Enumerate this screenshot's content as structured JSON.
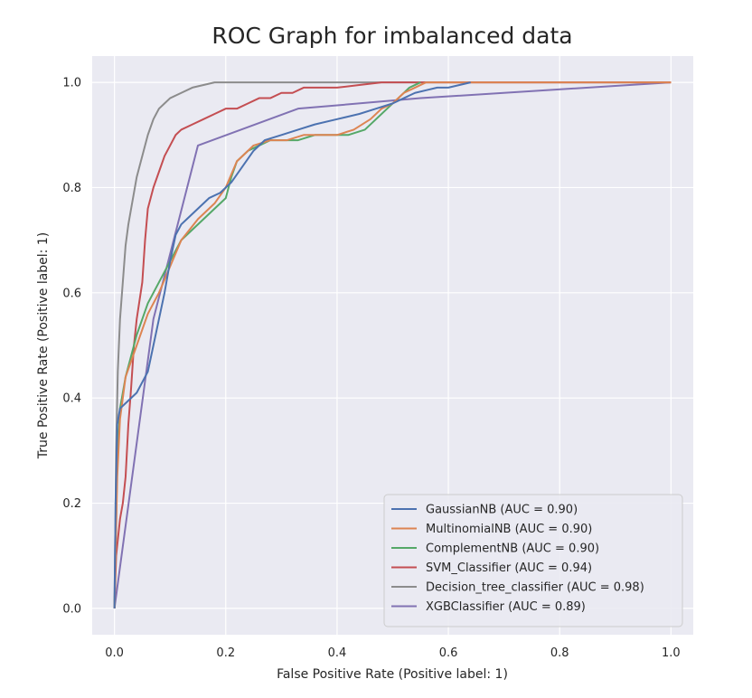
{
  "chart_data": {
    "type": "line",
    "title": "ROC Graph for imbalanced data",
    "xlabel": "False Positive Rate (Positive label: 1)",
    "ylabel": "True Positive Rate (Positive label: 1)",
    "xlim": [
      -0.04,
      1.04
    ],
    "ylim": [
      -0.05,
      1.05
    ],
    "xticks": [
      "0.0",
      "0.2",
      "0.4",
      "0.6",
      "0.8",
      "1.0"
    ],
    "yticks": [
      "0.0",
      "0.2",
      "0.4",
      "0.6",
      "0.8",
      "1.0"
    ],
    "grid": true,
    "background": "#eaeaf2",
    "legend_position": "lower-right",
    "series": [
      {
        "name": "GaussianNB (AUC = 0.90)",
        "color": "#4c72b0",
        "x": [
          0,
          0.002,
          0.005,
          0.01,
          0.02,
          0.04,
          0.06,
          0.07,
          0.08,
          0.09,
          0.1,
          0.11,
          0.12,
          0.13,
          0.15,
          0.17,
          0.19,
          0.21,
          0.23,
          0.25,
          0.27,
          0.3,
          0.33,
          0.36,
          0.4,
          0.44,
          0.47,
          0.5,
          0.52,
          0.53,
          0.54,
          0.56,
          0.58,
          0.6,
          0.62,
          0.64
        ],
        "y": [
          0,
          0.2,
          0.35,
          0.38,
          0.39,
          0.41,
          0.45,
          0.5,
          0.55,
          0.6,
          0.66,
          0.71,
          0.73,
          0.74,
          0.76,
          0.78,
          0.79,
          0.81,
          0.84,
          0.87,
          0.89,
          0.9,
          0.91,
          0.92,
          0.93,
          0.94,
          0.95,
          0.96,
          0.97,
          0.975,
          0.98,
          0.985,
          0.99,
          0.99,
          0.995,
          1.0
        ]
      },
      {
        "name": "MultinomialNB (AUC = 0.90)",
        "color": "#dd8452",
        "x": [
          0,
          0.005,
          0.01,
          0.02,
          0.04,
          0.06,
          0.08,
          0.1,
          0.12,
          0.15,
          0.18,
          0.2,
          0.22,
          0.25,
          0.28,
          0.31,
          0.34,
          0.37,
          0.4,
          0.43,
          0.46,
          0.48,
          0.5,
          0.52,
          0.54,
          0.56,
          1.0
        ],
        "y": [
          0,
          0.25,
          0.36,
          0.44,
          0.5,
          0.56,
          0.6,
          0.65,
          0.7,
          0.74,
          0.77,
          0.8,
          0.85,
          0.88,
          0.89,
          0.89,
          0.9,
          0.9,
          0.9,
          0.91,
          0.93,
          0.95,
          0.96,
          0.98,
          0.99,
          1.0,
          1.0
        ]
      },
      {
        "name": "ComplementNB (AUC = 0.90)",
        "color": "#55a868",
        "x": [
          0,
          0.005,
          0.01,
          0.02,
          0.03,
          0.04,
          0.05,
          0.06,
          0.07,
          0.08,
          0.09,
          0.1,
          0.11,
          0.12,
          0.14,
          0.16,
          0.18,
          0.2,
          0.21,
          0.22,
          0.24,
          0.26,
          0.28,
          0.3,
          0.33,
          0.36,
          0.39,
          0.42,
          0.45,
          0.47,
          0.49,
          0.51,
          0.53,
          0.55
        ],
        "y": [
          0,
          0.28,
          0.38,
          0.44,
          0.48,
          0.52,
          0.55,
          0.58,
          0.6,
          0.62,
          0.64,
          0.66,
          0.68,
          0.7,
          0.72,
          0.74,
          0.76,
          0.78,
          0.82,
          0.85,
          0.87,
          0.88,
          0.89,
          0.89,
          0.89,
          0.9,
          0.9,
          0.9,
          0.91,
          0.93,
          0.95,
          0.97,
          0.99,
          1.0
        ]
      },
      {
        "name": "SVM_Classifier (AUC = 0.94)",
        "color": "#c44e52",
        "x": [
          0,
          0.003,
          0.01,
          0.015,
          0.02,
          0.025,
          0.03,
          0.035,
          0.04,
          0.05,
          0.055,
          0.06,
          0.065,
          0.07,
          0.08,
          0.09,
          0.1,
          0.11,
          0.12,
          0.14,
          0.16,
          0.18,
          0.2,
          0.22,
          0.24,
          0.26,
          0.28,
          0.3,
          0.32,
          0.34,
          0.36,
          0.4,
          0.44,
          0.48,
          0.52,
          0.55,
          1.0
        ],
        "y": [
          0,
          0.1,
          0.17,
          0.2,
          0.25,
          0.35,
          0.42,
          0.5,
          0.55,
          0.62,
          0.7,
          0.76,
          0.78,
          0.8,
          0.83,
          0.86,
          0.88,
          0.9,
          0.91,
          0.92,
          0.93,
          0.94,
          0.95,
          0.95,
          0.96,
          0.97,
          0.97,
          0.98,
          0.98,
          0.99,
          0.99,
          0.99,
          0.995,
          1.0,
          1.0,
          1.0,
          1.0
        ]
      },
      {
        "name": "Decision_tree_classifier (AUC = 0.98)",
        "color": "#8c8c8c",
        "x": [
          0,
          0.003,
          0.006,
          0.01,
          0.015,
          0.02,
          0.025,
          0.03,
          0.035,
          0.04,
          0.045,
          0.05,
          0.06,
          0.07,
          0.08,
          0.09,
          0.1,
          0.12,
          0.14,
          0.16,
          0.18,
          0.2,
          1.0
        ],
        "y": [
          0,
          0.3,
          0.45,
          0.55,
          0.62,
          0.69,
          0.73,
          0.76,
          0.79,
          0.82,
          0.84,
          0.86,
          0.9,
          0.93,
          0.95,
          0.96,
          0.97,
          0.98,
          0.99,
          0.995,
          1.0,
          1.0,
          1.0
        ]
      },
      {
        "name": "XGBClassifier (AUC = 0.89)",
        "color": "#8172b3",
        "x": [
          0,
          0.07,
          0.15,
          0.33,
          0.55,
          1.0
        ],
        "y": [
          0,
          0.55,
          0.88,
          0.95,
          0.97,
          1.0
        ]
      }
    ]
  }
}
